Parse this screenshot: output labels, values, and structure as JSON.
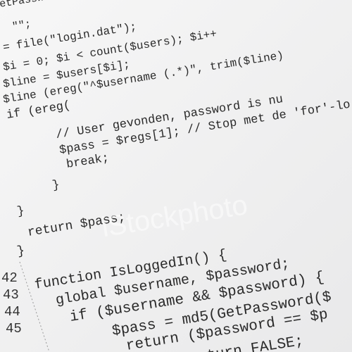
{
  "code_lines": [
    "etPasswo",
    "\"\";",
    "= file(\"login.dat\");",
    "$i = 0; $i < count($users); $i++",
    "$line = $users[$i];",
    "$line (ereg(\"^$username (.*)\", trim($line)",
    "if (ereg(",
    "// User gevonden, password is nu",
    "$pass = $regs[1];  // Stop met de 'for'-lo",
    "break;",
    "}",
    "}",
    "return $pass;",
    "}",
    "function IsLoggedIn() {",
    "global $username, $password;",
    "if ($username && $password) {",
    "$pass = md5(GetPassword($",
    "return ($password == $p",
    "return FALSE;"
  ],
  "line_numbers": [
    "42",
    "43",
    "44",
    "45"
  ],
  "watermark": "iStockphoto"
}
